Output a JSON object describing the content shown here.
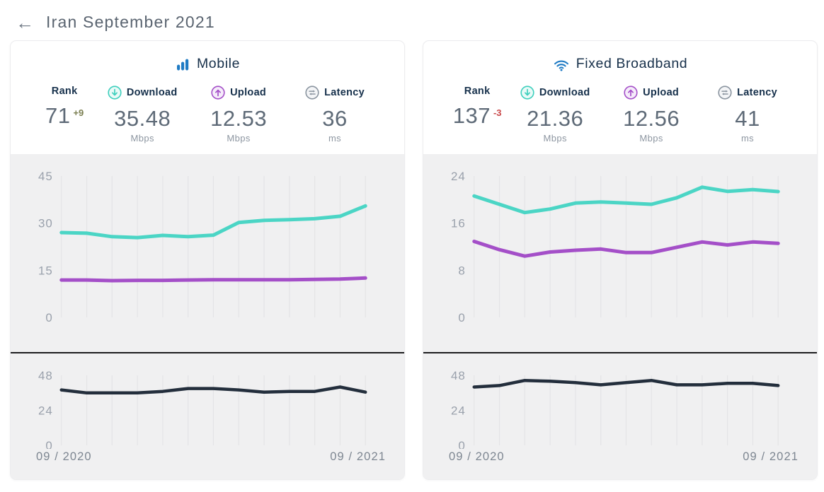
{
  "header": {
    "back_icon": "←",
    "title": "Iran September 2021"
  },
  "colors": {
    "download": "#4bd5c5",
    "upload": "#a44fc8",
    "latency_line": "#232e3c",
    "brand_blue": "#1f7bc4",
    "rank_up": "#7b7f51",
    "rank_down": "#c9484a",
    "grid": "#e4e4e6",
    "tick": "#9aa1ac"
  },
  "cards": [
    {
      "title": "Mobile",
      "rank": {
        "label": "Rank",
        "value": "71",
        "change": "+9"
      },
      "download": {
        "label": "Download",
        "value": "35.48",
        "unit": "Mbps"
      },
      "upload": {
        "label": "Upload",
        "value": "12.53",
        "unit": "Mbps"
      },
      "latency": {
        "label": "Latency",
        "value": "36",
        "unit": "ms"
      },
      "xaxis": {
        "start": "09 / 2020",
        "end": "09 / 2021"
      }
    },
    {
      "title": "Fixed Broadband",
      "rank": {
        "label": "Rank",
        "value": "137",
        "change": "-3"
      },
      "download": {
        "label": "Download",
        "value": "21.36",
        "unit": "Mbps"
      },
      "upload": {
        "label": "Upload",
        "value": "12.56",
        "unit": "Mbps"
      },
      "latency": {
        "label": "Latency",
        "value": "41",
        "unit": "ms"
      },
      "xaxis": {
        "start": "09 / 2020",
        "end": "09 / 2021"
      }
    }
  ],
  "chart_data": [
    {
      "id": "mobile-speed",
      "type": "line",
      "x": [
        "09/2020",
        "10/2020",
        "11/2020",
        "12/2020",
        "01/2021",
        "02/2021",
        "03/2021",
        "04/2021",
        "05/2021",
        "06/2021",
        "07/2021",
        "08/2021",
        "09/2021"
      ],
      "yticks": [
        0,
        15,
        30,
        45
      ],
      "ylim": [
        0,
        45
      ],
      "grid": true,
      "series": [
        {
          "name": "Download (Mbps)",
          "color": "download",
          "values": [
            27.0,
            26.8,
            25.7,
            25.4,
            26.1,
            25.7,
            26.2,
            30.2,
            30.9,
            31.1,
            31.4,
            32.2,
            35.48
          ]
        },
        {
          "name": "Upload (Mbps)",
          "color": "upload",
          "values": [
            11.9,
            11.9,
            11.7,
            11.8,
            11.8,
            11.9,
            12.0,
            12.0,
            12.0,
            12.0,
            12.1,
            12.2,
            12.53
          ]
        }
      ]
    },
    {
      "id": "mobile-latency",
      "type": "line",
      "x": [
        "09/2020",
        "10/2020",
        "11/2020",
        "12/2020",
        "01/2021",
        "02/2021",
        "03/2021",
        "04/2021",
        "05/2021",
        "06/2021",
        "07/2021",
        "08/2021",
        "09/2021"
      ],
      "yticks": [
        0,
        24,
        48
      ],
      "ylim": [
        0,
        48
      ],
      "grid": true,
      "series": [
        {
          "name": "Latency (ms)",
          "color": "latency_line",
          "values": [
            38,
            36,
            36,
            36,
            37,
            39,
            39,
            38,
            36.5,
            37,
            37,
            40,
            36.5
          ]
        }
      ]
    },
    {
      "id": "fixed-speed",
      "type": "line",
      "x": [
        "09/2020",
        "10/2020",
        "11/2020",
        "12/2020",
        "01/2021",
        "02/2021",
        "03/2021",
        "04/2021",
        "05/2021",
        "06/2021",
        "07/2021",
        "08/2021",
        "09/2021"
      ],
      "yticks": [
        0,
        8,
        16,
        24
      ],
      "ylim": [
        0,
        24
      ],
      "grid": true,
      "series": [
        {
          "name": "Download (Mbps)",
          "color": "download",
          "values": [
            20.6,
            19.2,
            17.8,
            18.4,
            19.4,
            19.6,
            19.4,
            19.2,
            20.3,
            22.1,
            21.4,
            21.7,
            21.36
          ]
        },
        {
          "name": "Upload (Mbps)",
          "color": "upload",
          "values": [
            12.9,
            11.5,
            10.4,
            11.1,
            11.4,
            11.6,
            11.0,
            11.0,
            11.9,
            12.8,
            12.3,
            12.8,
            12.56
          ]
        }
      ]
    },
    {
      "id": "fixed-latency",
      "type": "line",
      "x": [
        "09/2020",
        "10/2020",
        "11/2020",
        "12/2020",
        "01/2021",
        "02/2021",
        "03/2021",
        "04/2021",
        "05/2021",
        "06/2021",
        "07/2021",
        "08/2021",
        "09/2021"
      ],
      "yticks": [
        0,
        24,
        48
      ],
      "ylim": [
        0,
        48
      ],
      "grid": true,
      "series": [
        {
          "name": "Latency (ms)",
          "color": "latency_line",
          "values": [
            40,
            41,
            44.5,
            44,
            43,
            41.5,
            43,
            44.5,
            41.5,
            41.5,
            42.5,
            42.5,
            41
          ]
        }
      ]
    }
  ]
}
